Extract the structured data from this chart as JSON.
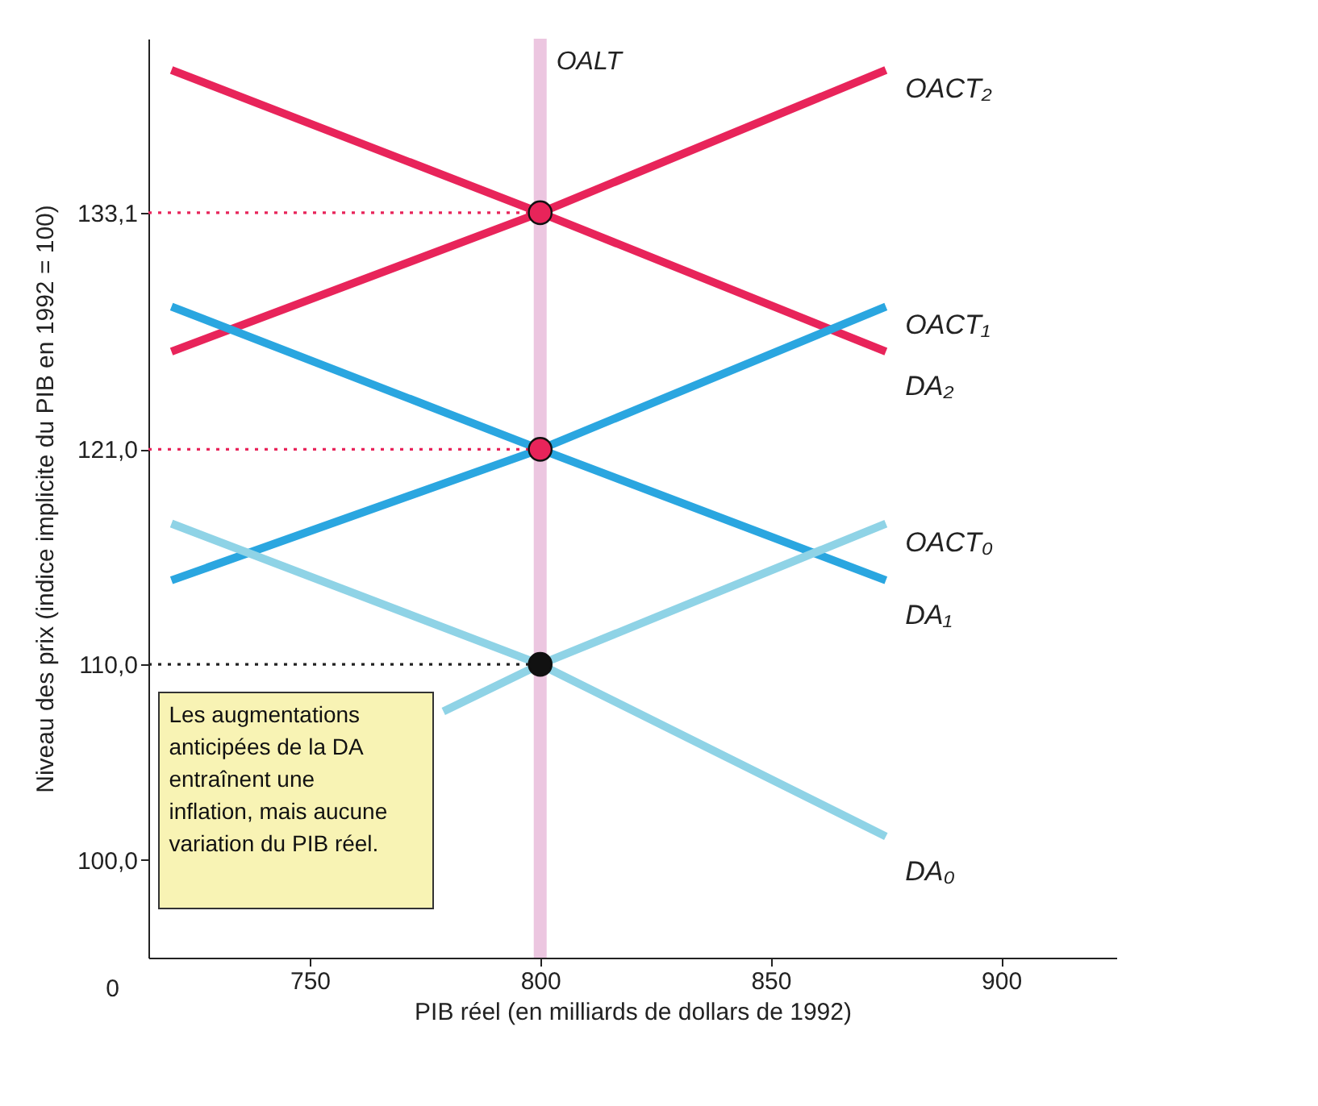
{
  "chart_data": {
    "type": "line",
    "xlabel": "PIB réel (en milliards de dollars de 1992)",
    "ylabel": "Niveau des prix (indice implicite du PIB en 1992 = 100)",
    "xlim": [
      715,
      925
    ],
    "xticks": [
      750,
      800,
      850,
      900
    ],
    "ylim": [
      95,
      142
    ],
    "yticks": [
      {
        "value": 100,
        "label": "100,0"
      },
      {
        "value": 110,
        "label": "110,0"
      },
      {
        "value": 121,
        "label": "121,0"
      },
      {
        "value": 133.1,
        "label": "133,1"
      }
    ],
    "grid": false,
    "marker": "none",
    "line_style": "solid",
    "series": [
      {
        "name": "OACT₂",
        "color": "#e8245a",
        "x": [
          720,
          800,
          875
        ],
        "values": [
          126.0,
          133.1,
          140.4
        ]
      },
      {
        "name": "DA₂",
        "color": "#e8245a",
        "x": [
          720,
          800,
          875
        ],
        "values": [
          140.4,
          133.1,
          126.0
        ]
      },
      {
        "name": "OACT₁",
        "color": "#2aa6e0",
        "x": [
          720,
          800,
          875
        ],
        "values": [
          114.3,
          121,
          128.3
        ]
      },
      {
        "name": "DA₁",
        "color": "#2aa6e0",
        "x": [
          720,
          800,
          875
        ],
        "values": [
          128.3,
          121,
          114.3
        ]
      },
      {
        "name": "OACT₀",
        "color": "#8fd3e6",
        "x": [
          779,
          800,
          875
        ],
        "values": [
          107.6,
          110,
          117.2
        ]
      },
      {
        "name": "DA₀",
        "color": "#8fd3e6",
        "x": [
          720,
          800,
          875
        ],
        "values": [
          117.2,
          110,
          101.2
        ]
      },
      {
        "color": "#e8245a",
        "line_style": "dotted",
        "x": [
          715,
          800
        ],
        "values": [
          133.1,
          133.1
        ]
      },
      {
        "color": "#e8245a",
        "line_style": "dotted",
        "x": [
          715,
          800
        ],
        "values": [
          121,
          121
        ]
      },
      {
        "color": "#222222",
        "line_style": "dotted",
        "x": [
          715,
          800
        ],
        "values": [
          110,
          110
        ]
      },
      {
        "type": "scatter",
        "marker": "circle",
        "x": [
          800,
          800,
          800
        ],
        "values": [
          110,
          121,
          133.1
        ],
        "colors": [
          "#111111",
          "#e8245a",
          "#e8245a"
        ]
      }
    ],
    "ref_lines": [
      {
        "axis": "x",
        "value": 800,
        "label": "OALT",
        "color": "#ecc6e0"
      }
    ],
    "annotations": [
      "Les augmentations anticipées de la DA entraînent une inflation, mais aucune variation du PIB réel.",
      "0"
    ]
  }
}
